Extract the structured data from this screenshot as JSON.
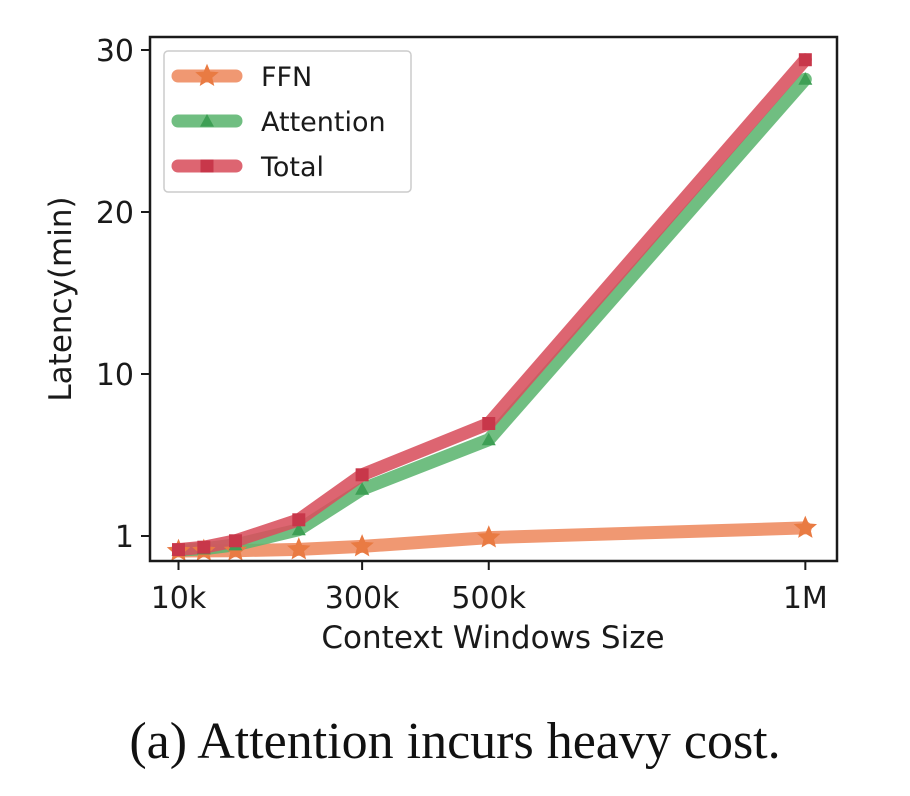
{
  "chart_data": {
    "type": "line",
    "xlabel": "Context Windows Size",
    "ylabel": "Latency(min)",
    "x_tick_labels": [
      "10k",
      "300k",
      "500k",
      "1M"
    ],
    "x_tick_values": [
      10000,
      300000,
      500000,
      1000000
    ],
    "y_tick_labels": [
      "1",
      "10",
      "20",
      "30"
    ],
    "y_tick_values": [
      1,
      10,
      20,
      30
    ],
    "y_scale": "piecewise (segment 1–10 compressed, 10–30 linear)",
    "ylim": [
      0.05,
      30.8
    ],
    "xlim": [
      -35000,
      1050000
    ],
    "legend_position": "top-left",
    "grid": false,
    "x": [
      10000,
      50000,
      100000,
      200000,
      300000,
      500000,
      1000000
    ],
    "series": [
      {
        "name": "FFN",
        "marker": "star",
        "color": "#ee8a5e",
        "values": [
          0.06,
          0.07,
          0.08,
          0.16,
          0.35,
          0.9,
          1.45
        ]
      },
      {
        "name": "Attention",
        "marker": "triangle",
        "color": "#5cb56f",
        "values": [
          0.12,
          0.2,
          0.45,
          1.35,
          3.6,
          6.35,
          28.2
        ]
      },
      {
        "name": "Total",
        "marker": "square",
        "color": "#d8505d",
        "values": [
          0.15,
          0.3,
          0.7,
          1.9,
          4.4,
          7.25,
          29.4
        ]
      }
    ]
  },
  "caption": "(a) Attention incurs heavy cost."
}
